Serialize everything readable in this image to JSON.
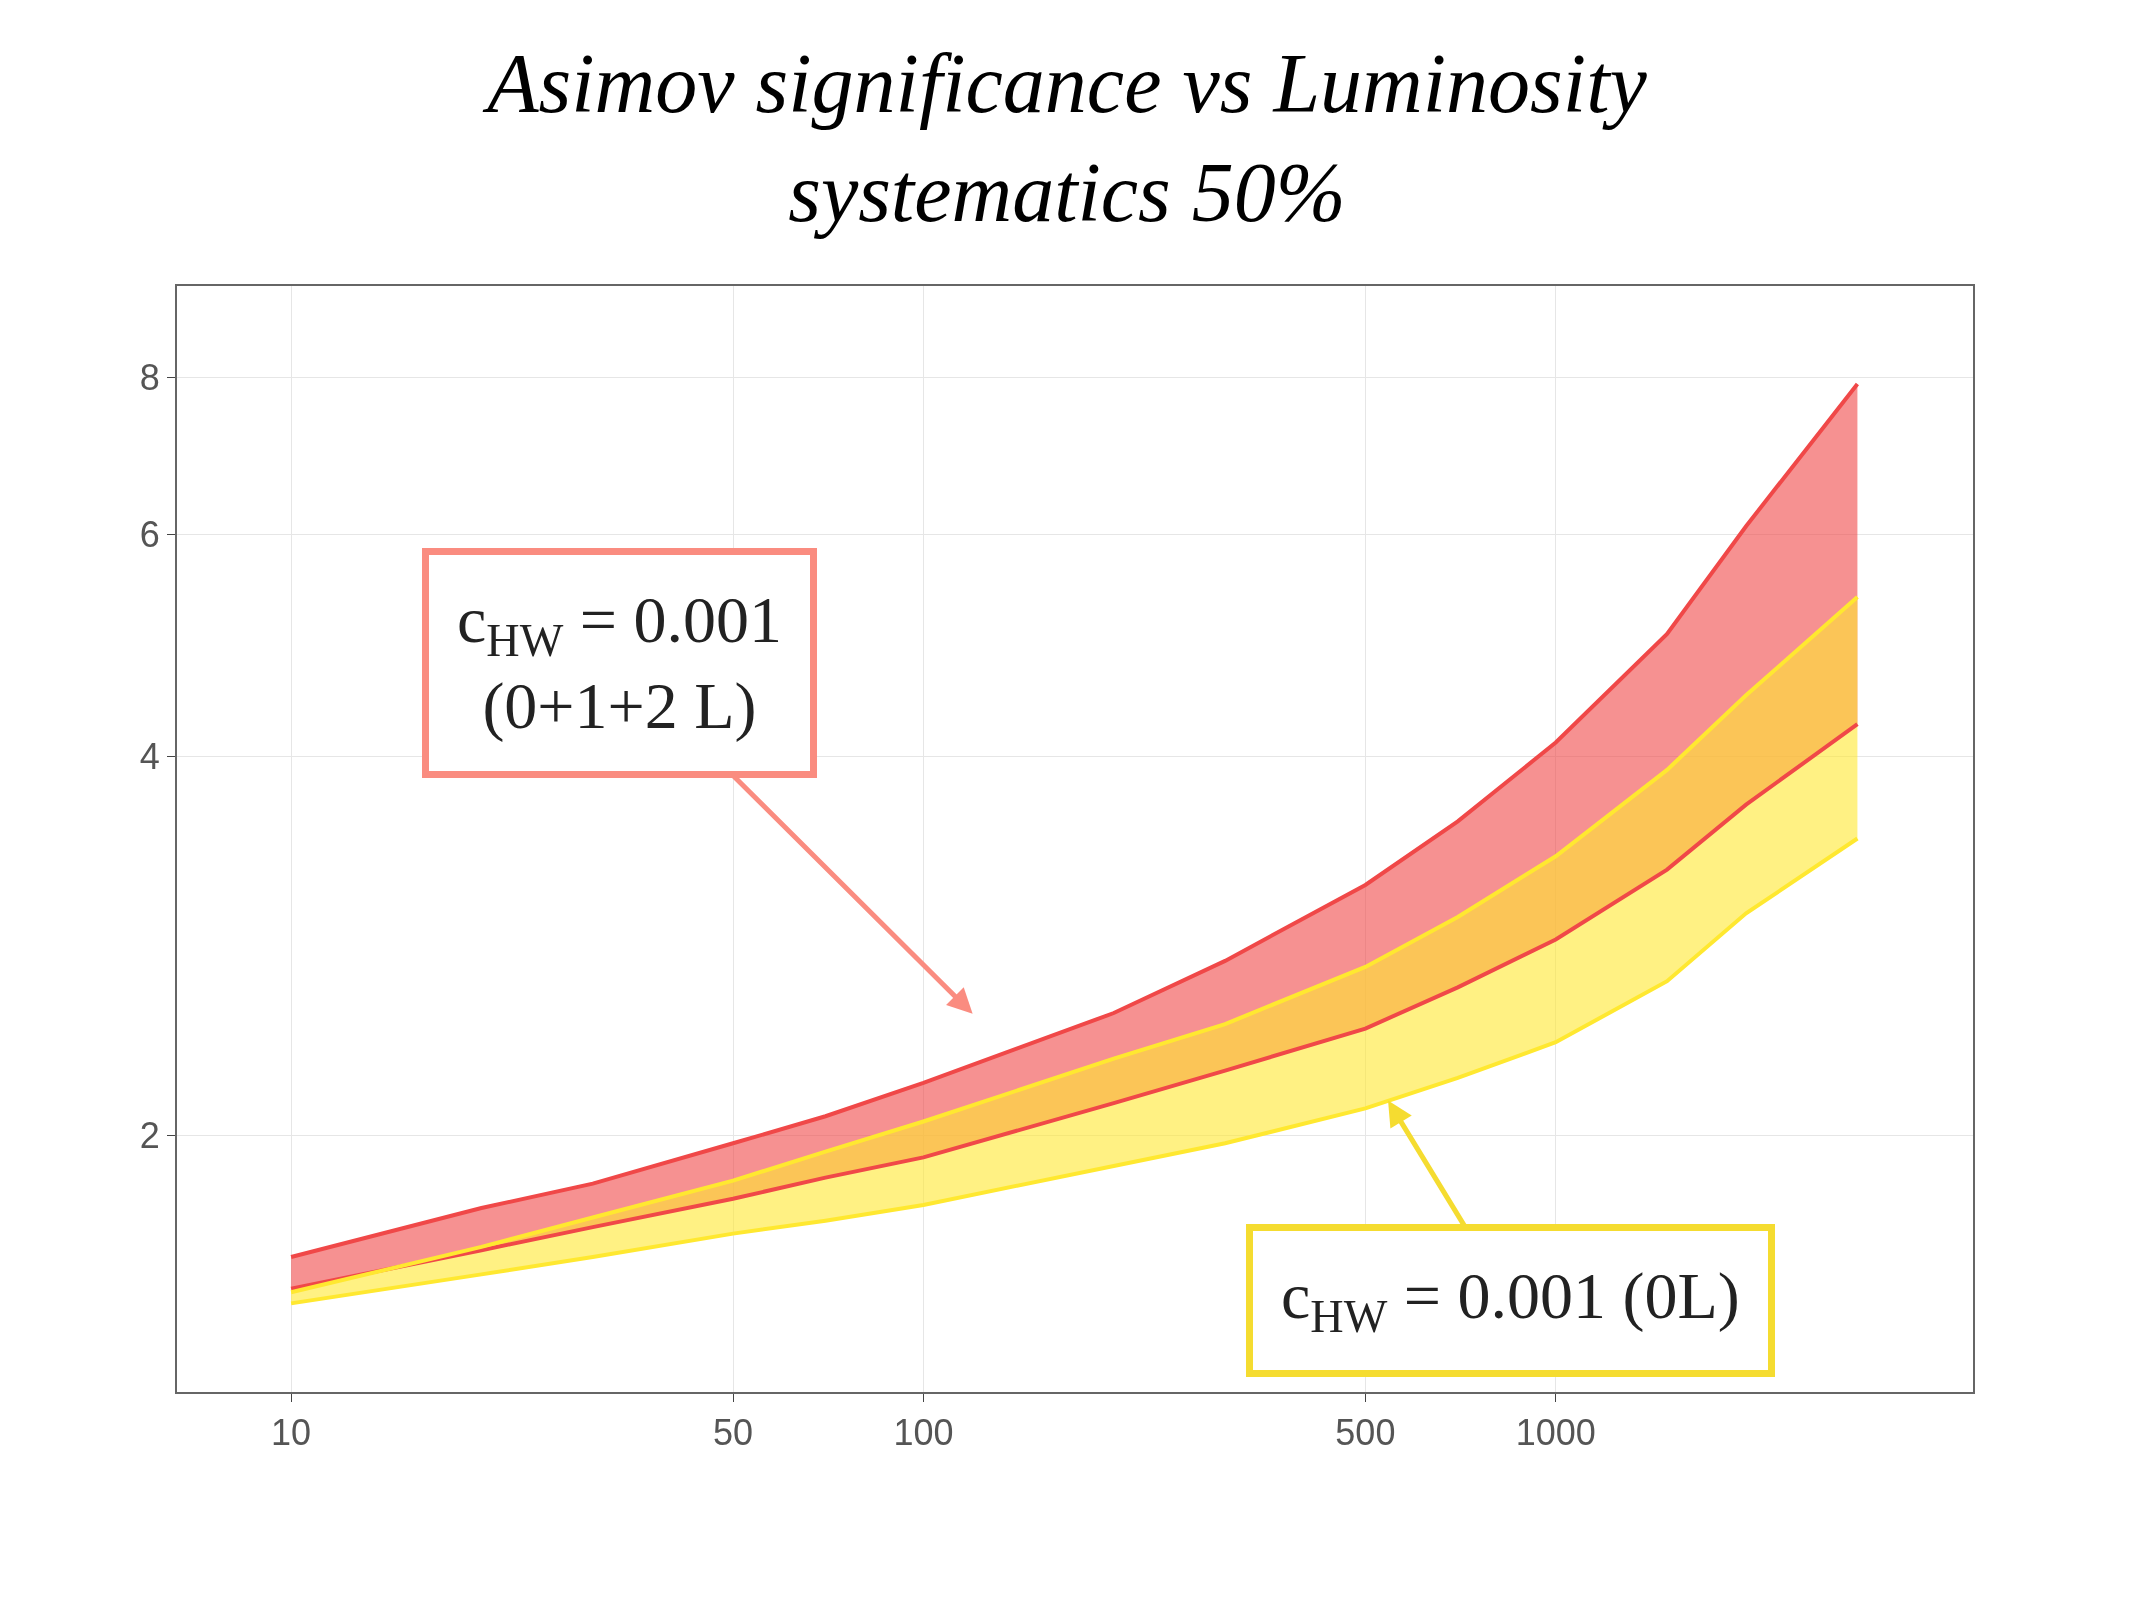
{
  "chart_data": {
    "type": "area",
    "title": "Asimov significance vs Luminosity\nsystematics 50%",
    "x": [
      10,
      20,
      30,
      50,
      70,
      100,
      200,
      300,
      500,
      700,
      1000,
      1500,
      2000,
      3000
    ],
    "series": [
      {
        "type": "line",
        "color": "#f04848",
        "values": [
          1.51,
          1.62,
          1.69,
          1.78,
          1.85,
          1.92,
          2.12,
          2.25,
          2.43,
          2.62,
          2.86,
          3.25,
          3.66,
          4.24
        ]
      },
      {
        "color": "#f04848",
        "values": [
          1.6,
          1.75,
          1.83,
          1.97,
          2.07,
          2.2,
          2.5,
          2.75,
          3.16,
          3.55,
          4.1,
          5.0,
          6.09,
          7.9
        ]
      },
      {
        "type": "line",
        "color": "#ffe830",
        "values": [
          1.47,
          1.55,
          1.6,
          1.67,
          1.71,
          1.76,
          1.89,
          1.97,
          2.1,
          2.22,
          2.37,
          2.65,
          3.0,
          3.44
        ]
      },
      {
        "color": "#ffe830",
        "values": [
          1.5,
          1.63,
          1.72,
          1.84,
          1.94,
          2.05,
          2.3,
          2.45,
          2.72,
          2.98,
          3.33,
          3.9,
          4.47,
          5.35
        ]
      }
    ],
    "annotations": [
      "c$_{HW}$ = 0.001\n(0+1+2 L)",
      {
        "text": "c$_{HW}$ = 0.001 (0L)",
        "x": 543,
        "y": 2.13
      }
    ],
    "log": "xy",
    "xlim": [
      6.6,
      4570
    ],
    "ylim": [
      1.25,
      9.45
    ],
    "xticks": [
      10,
      50,
      100,
      500,
      1000
    ],
    "yticks": [
      2,
      4,
      6,
      8
    ],
    "grid": true
  }
}
